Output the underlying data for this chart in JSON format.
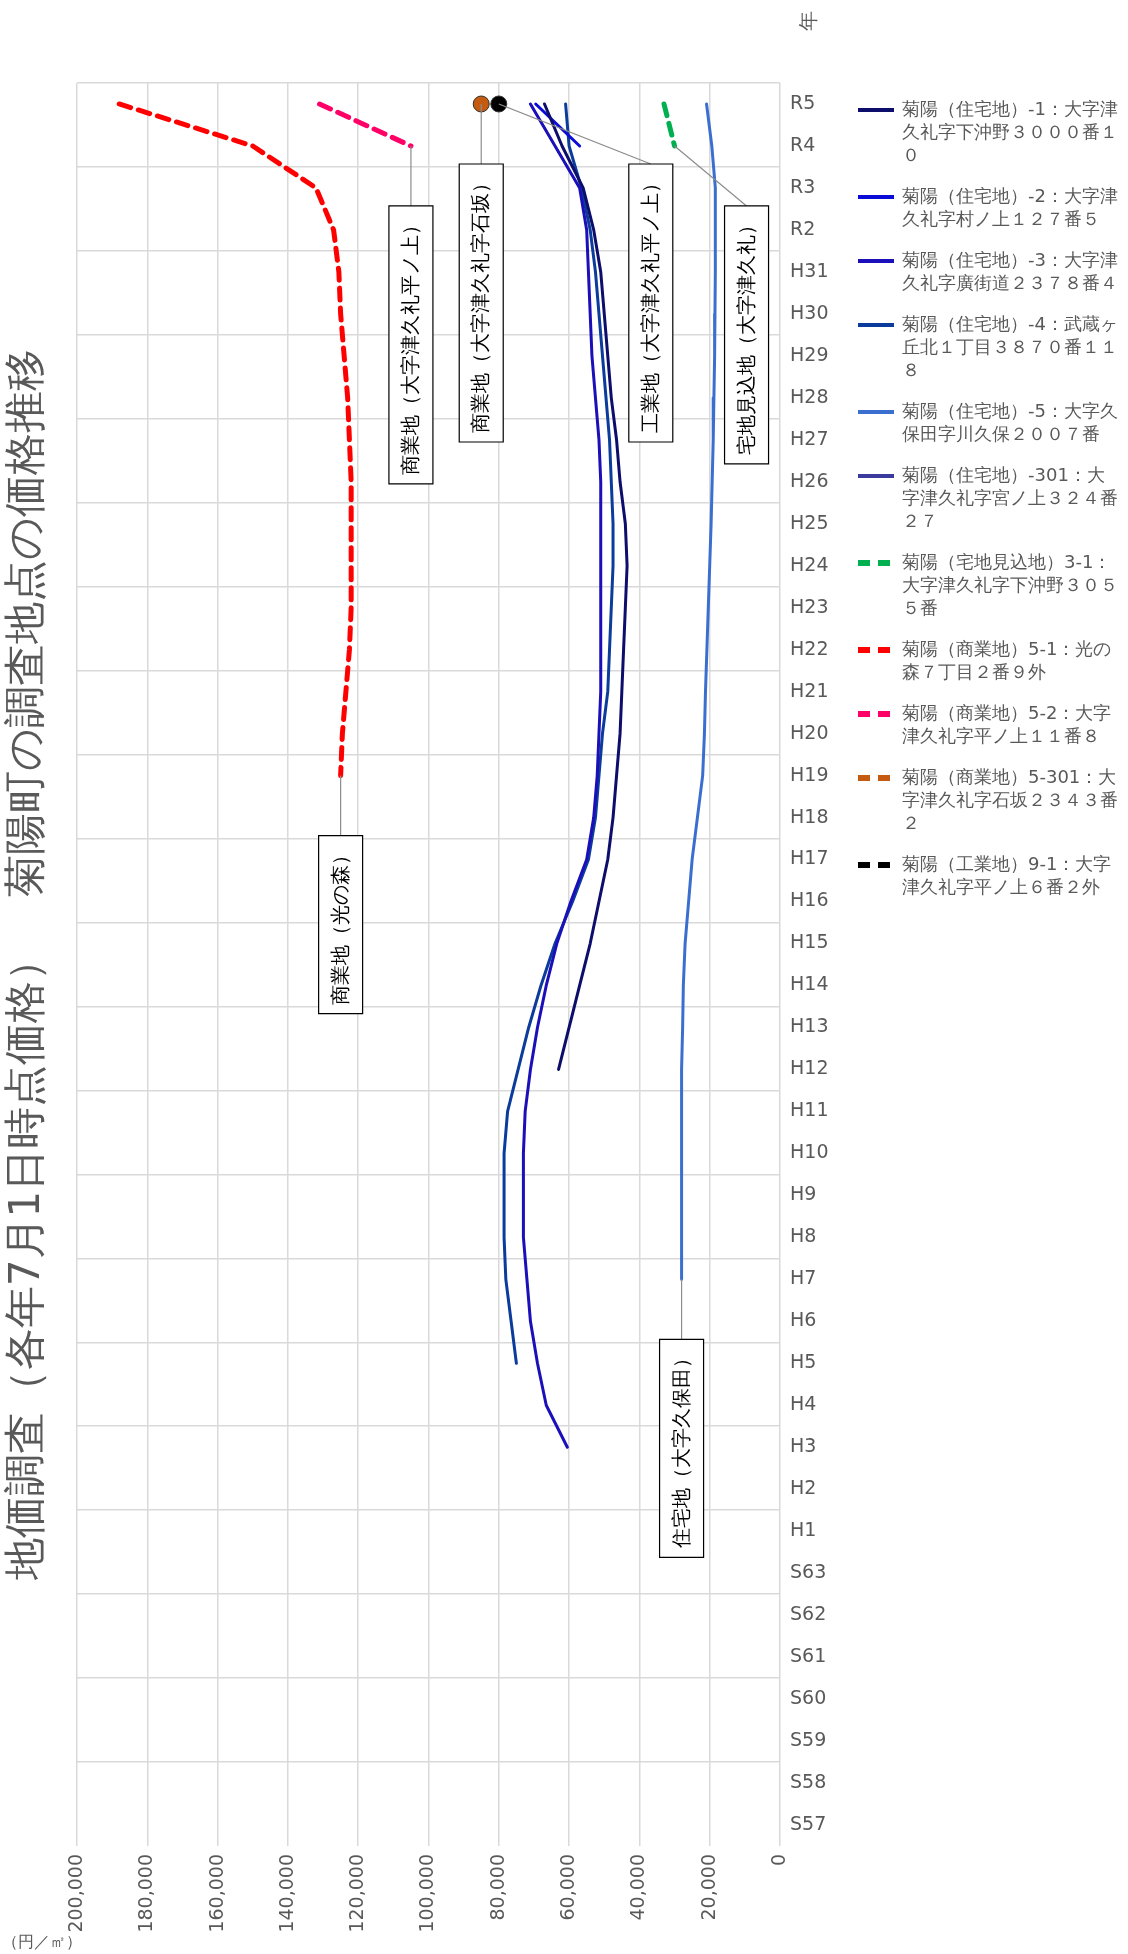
{
  "chart_data": {
    "type": "line",
    "orientation": "horizontal",
    "title": "地価調査（各年7月1日時点価格）　菊陽町の調査地点の価格推移",
    "xlabel": "（円／㎡）",
    "ylabel": "年",
    "categories": [
      "R5",
      "R4",
      "R3",
      "R2",
      "H31",
      "H30",
      "H29",
      "H28",
      "H27",
      "H26",
      "H25",
      "H24",
      "H23",
      "H22",
      "H21",
      "H20",
      "H19",
      "H18",
      "H17",
      "H16",
      "H15",
      "H14",
      "H13",
      "H12",
      "H11",
      "H10",
      "H9",
      "H8",
      "H7",
      "H6",
      "H5",
      "H4",
      "H3",
      "H2",
      "H1",
      "S63",
      "S62",
      "S61",
      "S60",
      "S59",
      "S58",
      "S57"
    ],
    "xlim": [
      200000,
      0
    ],
    "xticks": [
      {
        "value": 200000,
        "label": "200,000"
      },
      {
        "value": 180000,
        "label": "180,000"
      },
      {
        "value": 160000,
        "label": "160,000"
      },
      {
        "value": 140000,
        "label": "140,000"
      },
      {
        "value": 120000,
        "label": "120,000"
      },
      {
        "value": 100000,
        "label": "100,000"
      },
      {
        "value": 80000,
        "label": "80,000"
      },
      {
        "value": 60000,
        "label": "60,000"
      },
      {
        "value": 40000,
        "label": "40,000"
      },
      {
        "value": 20000,
        "label": "20,000"
      },
      0
    ],
    "grid": true,
    "legend": "right",
    "marker": "none",
    "line_style": "solid",
    "series": [
      {
        "name": "菊陽（住宅地）-1：大字津久礼字下沖野３０００番１０",
        "color": "#0d0d6b",
        "values": [
          67000,
          62000,
          56000,
          53000,
          51000,
          50000,
          49000,
          48000,
          46500,
          45500,
          44000,
          43500,
          44000,
          44500,
          45000,
          45500,
          46500,
          47500,
          49000,
          51500,
          54000,
          57000,
          60000,
          63000,
          null,
          null,
          null,
          null,
          null,
          null,
          null,
          null,
          null,
          null,
          null,
          null,
          null,
          null,
          null,
          null,
          null,
          null
        ]
      },
      {
        "name": "菊陽（住宅地）-2：大字津久礼字村ノ上１２７番５",
        "color": "#0b0bd6",
        "values": [
          69500,
          57000,
          null,
          null,
          null,
          null,
          null,
          null,
          null,
          null,
          null,
          null,
          null,
          null,
          null,
          null,
          null,
          null,
          null,
          null,
          null,
          null,
          null,
          null,
          null,
          null,
          null,
          null,
          null,
          null,
          null,
          null,
          null,
          null,
          null,
          null,
          null,
          null,
          null,
          null,
          null,
          null
        ]
      },
      {
        "name": "菊陽（住宅地）-3：大字津久礼字廣街道２３７８番４",
        "color": "#1a0fb8",
        "values": [
          71000,
          64000,
          57000,
          55000,
          54500,
          54000,
          53500,
          52500,
          51500,
          51000,
          51000,
          51000,
          51000,
          51000,
          51000,
          51500,
          52000,
          53000,
          55000,
          59500,
          63500,
          66500,
          69000,
          71000,
          72500,
          73000,
          73000,
          73000,
          72000,
          71000,
          69000,
          66500,
          60500,
          null,
          null,
          null,
          null,
          null,
          null,
          null,
          null,
          null
        ]
      },
      {
        "name": "菊陽（住宅地）-4：武蔵ヶ丘北１丁目３８７０番１１８",
        "color": "#0b3c9c",
        "values": [
          61000,
          60000,
          56500,
          54000,
          52500,
          51500,
          50500,
          49500,
          48500,
          48000,
          47500,
          47500,
          48000,
          48500,
          49000,
          50500,
          51500,
          52500,
          54500,
          59000,
          64000,
          68000,
          71500,
          74500,
          77500,
          78500,
          78500,
          78500,
          78000,
          76500,
          75000,
          null,
          null,
          null,
          null,
          null,
          null,
          null,
          null,
          null,
          null,
          null
        ]
      },
      {
        "name": "菊陽（住宅地）-5：大字久保田字川久保２００７番",
        "color": "#3a6fd0",
        "values": [
          20900,
          19400,
          18400,
          18400,
          18400,
          18500,
          18600,
          18800,
          19000,
          19300,
          19600,
          20000,
          20400,
          20800,
          21200,
          21500,
          22000,
          23500,
          25000,
          26000,
          27000,
          27500,
          27700,
          28000,
          28000,
          28000,
          28000,
          28000,
          28000,
          null,
          null,
          null,
          null,
          null,
          null,
          null,
          null,
          null,
          null,
          null,
          null,
          null
        ]
      },
      {
        "name": "菊陽（住宅地）-301：大字津久礼字宮ノ上３２４番２７",
        "color": "#3b3b9e",
        "values": [
          null,
          null,
          null,
          null,
          null,
          null,
          null,
          null,
          null,
          null,
          null,
          null,
          null,
          null,
          null,
          null,
          null,
          null,
          null,
          null,
          null,
          null,
          null,
          null,
          null,
          null,
          null,
          null,
          null,
          null,
          null,
          null,
          null,
          null,
          null,
          null,
          null,
          null,
          null,
          null,
          null,
          null
        ]
      },
      {
        "name": "菊陽（宅地見込地）3-1：大字津久礼字下沖野３０５５番",
        "color": "#00b050",
        "line_style": "dashed",
        "values": [
          33000,
          30000,
          null,
          null,
          null,
          null,
          null,
          null,
          null,
          null,
          null,
          null,
          null,
          null,
          null,
          null,
          null,
          null,
          null,
          null,
          null,
          null,
          null,
          null,
          null,
          null,
          null,
          null,
          null,
          null,
          null,
          null,
          null,
          null,
          null,
          null,
          null,
          null,
          null,
          null,
          null,
          null
        ]
      },
      {
        "name": "菊陽（商業地）5-1：光の森７丁目２番９外",
        "color": "#ff0000",
        "line_style": "dashed",
        "values": [
          188000,
          150000,
          132000,
          127000,
          125500,
          125000,
          124000,
          123000,
          122500,
          122000,
          122000,
          122000,
          122000,
          122500,
          123500,
          124500,
          125000,
          null,
          null,
          null,
          null,
          null,
          null,
          null,
          null,
          null,
          null,
          null,
          null,
          null,
          null,
          null,
          null,
          null,
          null,
          null,
          null,
          null,
          null,
          null,
          null,
          null
        ]
      },
      {
        "name": "菊陽（商業地）5-2：大字津久礼字平ノ上１１番８",
        "color": "#ff0066",
        "line_style": "dashed",
        "values": [
          131000,
          105000,
          null,
          null,
          null,
          null,
          null,
          null,
          null,
          null,
          null,
          null,
          null,
          null,
          null,
          null,
          null,
          null,
          null,
          null,
          null,
          null,
          null,
          null,
          null,
          null,
          null,
          null,
          null,
          null,
          null,
          null,
          null,
          null,
          null,
          null,
          null,
          null,
          null,
          null,
          null,
          null
        ]
      },
      {
        "name": "菊陽（商業地）5-301：大字津久礼字石坂２３４３番２",
        "color": "#c55a11",
        "line_style": "dashed",
        "marker": "circle",
        "values": [
          85000,
          null,
          null,
          null,
          null,
          null,
          null,
          null,
          null,
          null,
          null,
          null,
          null,
          null,
          null,
          null,
          null,
          null,
          null,
          null,
          null,
          null,
          null,
          null,
          null,
          null,
          null,
          null,
          null,
          null,
          null,
          null,
          null,
          null,
          null,
          null,
          null,
          null,
          null,
          null,
          null,
          null
        ]
      },
      {
        "name": "菊陽（工業地）9-1：大字津久礼字平ノ上６番２外",
        "color": "#000000",
        "line_style": "dashed",
        "marker": "circle",
        "values": [
          80000,
          null,
          null,
          null,
          null,
          null,
          null,
          null,
          null,
          null,
          null,
          null,
          null,
          null,
          null,
          null,
          null,
          null,
          null,
          null,
          null,
          null,
          null,
          null,
          null,
          null,
          null,
          null,
          null,
          null,
          null,
          null,
          null,
          null,
          null,
          null,
          null,
          null,
          null,
          null,
          null,
          null
        ]
      }
    ],
    "annotations": [
      {
        "text": "商業地（光の森）",
        "x": 125000,
        "y": "H19"
      },
      {
        "text": "住宅地（大字久保田）",
        "x": 28000,
        "y": "H7"
      },
      {
        "text": "商業地（大字津久礼平ノ上）",
        "x": 105000,
        "y": "R4"
      },
      {
        "text": "商業地（大字津久礼字石坂）",
        "x": 85000,
        "y": "R5"
      },
      {
        "text": "工業地（大字津久礼平ノ上）",
        "x": 80000,
        "y": "R5"
      },
      {
        "text": "宅地見込地（大字津久礼）",
        "x": 30000,
        "y": "R4"
      }
    ]
  }
}
